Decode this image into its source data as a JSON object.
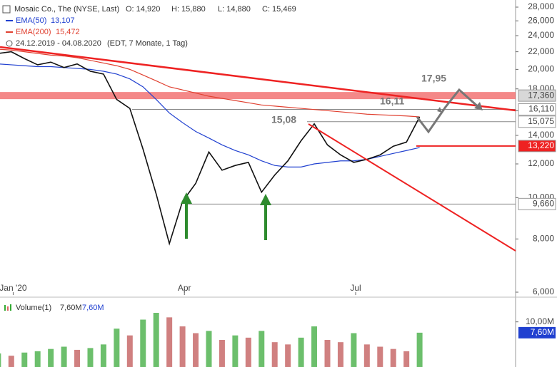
{
  "chart_data": [
    {
      "type": "line",
      "header": {
        "name": "Mosaic Co., The (NYSE, Last)",
        "open": "O: 14,920",
        "high": "H: 15,880",
        "low": "L: 14,880",
        "close": "C: 15,469",
        "range": "24.12.2019 - 04.08.2020",
        "info": "(EDT, 7 Monate, 1 Tag)"
      },
      "log_scale": true,
      "x": [
        "2019-12-24",
        "2019-12-31",
        "2020-01-07",
        "2020-01-14",
        "2020-01-21",
        "2020-01-28",
        "2020-02-04",
        "2020-02-11",
        "2020-02-18",
        "2020-02-25",
        "2020-03-03",
        "2020-03-10",
        "2020-03-17",
        "2020-03-24",
        "2020-03-31",
        "2020-04-07",
        "2020-04-14",
        "2020-04-21",
        "2020-04-28",
        "2020-05-05",
        "2020-05-12",
        "2020-05-19",
        "2020-05-26",
        "2020-06-02",
        "2020-06-09",
        "2020-06-16",
        "2020-06-23",
        "2020-06-30",
        "2020-07-07",
        "2020-07-14",
        "2020-07-21",
        "2020-07-28",
        "2020-08-04"
      ],
      "xlim": [
        "2019-12-25",
        "2020-09-24"
      ],
      "xticks": [
        {
          "value": "2020-01-01",
          "label": "Jan '20"
        },
        {
          "value": "2020-04-01",
          "label": "Apr"
        },
        {
          "value": "2020-07-01",
          "label": "Jul"
        }
      ],
      "ylim": [
        6,
        28
      ],
      "yticks": [
        {
          "value": 6,
          "label": "6,000"
        },
        {
          "value": 8,
          "label": "8,000"
        },
        {
          "value": 10,
          "label": "10,000"
        },
        {
          "value": 12,
          "label": "12,000"
        },
        {
          "value": 14,
          "label": "14,000"
        },
        {
          "value": 16,
          "label": "16,000"
        },
        {
          "value": 18,
          "label": "18,000"
        },
        {
          "value": 20,
          "label": "20,000"
        },
        {
          "value": 22,
          "label": "22,000"
        },
        {
          "value": 24,
          "label": "24,000"
        },
        {
          "value": 26,
          "label": "26,000"
        },
        {
          "value": 28,
          "label": "28,000"
        }
      ],
      "series": [
        {
          "name": "Mosaic",
          "color": "#111111",
          "values": [
            21.8,
            22.0,
            21.2,
            20.5,
            20.8,
            20.2,
            20.6,
            19.8,
            19.5,
            17.0,
            16.2,
            13.0,
            10.2,
            7.8,
            9.8,
            10.8,
            12.8,
            11.6,
            11.9,
            12.1,
            10.3,
            11.3,
            12.2,
            13.6,
            14.9,
            13.3,
            12.6,
            12.1,
            12.3,
            12.6,
            13.2,
            13.5,
            15.469
          ]
        },
        {
          "name": "EMA(50)",
          "value_label": "13,107",
          "color": "#2040d0",
          "values": [
            20.6,
            20.5,
            20.4,
            20.3,
            20.3,
            20.2,
            20.1,
            20.0,
            19.8,
            19.5,
            19.0,
            18.2,
            17.0,
            15.8,
            15.0,
            14.3,
            13.8,
            13.3,
            12.9,
            12.6,
            12.2,
            11.9,
            11.8,
            11.8,
            12.0,
            12.1,
            12.2,
            12.2,
            12.3,
            12.5,
            12.7,
            12.9,
            13.107
          ]
        },
        {
          "name": "EMA(200)",
          "value_label": "15,472",
          "color": "#e04030",
          "values": [
            22.3,
            22.2,
            22.0,
            21.8,
            21.6,
            21.5,
            21.3,
            21.0,
            20.7,
            20.4,
            20.0,
            19.4,
            18.8,
            18.2,
            17.9,
            17.6,
            17.3,
            17.1,
            16.9,
            16.7,
            16.5,
            16.4,
            16.3,
            16.2,
            16.1,
            16.0,
            15.9,
            15.8,
            15.7,
            15.65,
            15.6,
            15.55,
            15.472
          ]
        }
      ],
      "levels": [
        {
          "value": 17.36,
          "label": "17,360",
          "color": "#f06060",
          "box": "#d8d8d8"
        },
        {
          "value": 16.11,
          "label": "16,110",
          "color": "#888888",
          "box": "#ffffff"
        },
        {
          "value": 15.075,
          "label": "15,075",
          "color": "#888888",
          "box": "#ffffff"
        },
        {
          "value": 13.22,
          "label": "13,220",
          "color": "#ee2222",
          "box": "#ee2222"
        },
        {
          "value": 9.66,
          "label": "9,660",
          "color": "#888888",
          "box": "#ffffff"
        }
      ],
      "annotations": [
        "15,08",
        "16,11",
        "17,95"
      ]
    },
    {
      "type": "bar",
      "series": [
        {
          "name": "Volume(1)",
          "color": "#d08080",
          "values": [
            3.0,
            2.5,
            3.2,
            3.5,
            4.0,
            4.5,
            3.8,
            4.2,
            5.0,
            8.5,
            7.0,
            10.5,
            12.0,
            11.0,
            9.0,
            7.5,
            8.0,
            6.0,
            7.0,
            6.5,
            8.0,
            5.5,
            5.0,
            6.5,
            9.0,
            6.0,
            5.5,
            7.5,
            5.0,
            4.5,
            4.0,
            3.5,
            7.6
          ],
          "value_labels": [
            null,
            null,
            null,
            null,
            null,
            null,
            null,
            null,
            null,
            null,
            null,
            null,
            null,
            null,
            null,
            null,
            null,
            null,
            null,
            null,
            null,
            null,
            null,
            null,
            null,
            null,
            null,
            null,
            null,
            null,
            null,
            null,
            "7,60M"
          ]
        }
      ],
      "ylim": [
        0,
        15
      ],
      "yticks": [
        {
          "value": 10,
          "label": "10,00M"
        }
      ]
    }
  ]
}
